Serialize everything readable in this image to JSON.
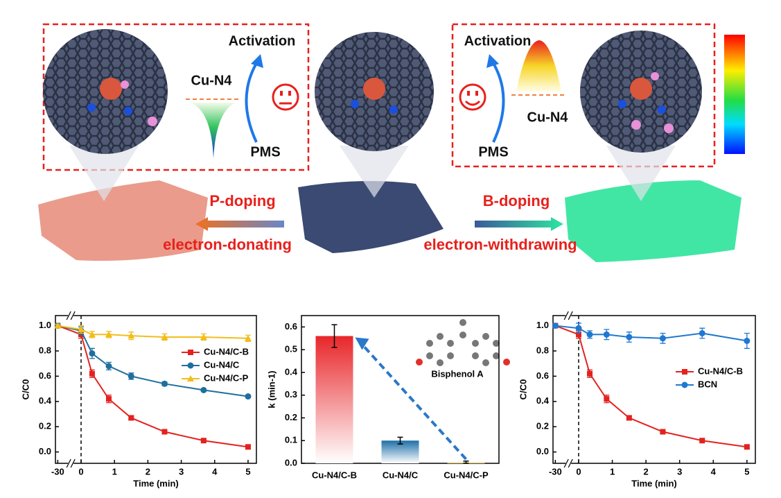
{
  "schematic": {
    "left": {
      "activation": "Activation",
      "site": "Cu-N4",
      "oxidant": "PMS",
      "doping": "P-doping",
      "effect": "electron-donating"
    },
    "right": {
      "activation": "Activation",
      "site": "Cu-N4",
      "oxidant": "PMS",
      "doping": "B-doping",
      "effect": "electron-withdrawing"
    }
  },
  "chart_data": [
    {
      "type": "line",
      "x": [
        -30,
        0,
        0.33,
        0.83,
        1.5,
        2.5,
        3.67,
        5
      ],
      "xlim": [
        -33,
        5.25
      ],
      "xticks": [
        -30,
        0,
        1,
        2,
        3,
        4,
        5
      ],
      "ylim": [
        -0.09,
        1.08
      ],
      "yticks": [
        {
          "value": 0,
          "label": "0.0"
        },
        0.2,
        0.4,
        0.6,
        0.8,
        {
          "value": 1,
          "label": "1.0"
        }
      ],
      "xlabel": "Time (min)",
      "ylabel": "C/C0",
      "series": [
        {
          "name": "Cu-N4/C-B",
          "color": "#e3221f",
          "marker": "square",
          "values": [
            1.0,
            0.93,
            0.62,
            0.42,
            0.27,
            0.16,
            0.09,
            0.04
          ],
          "errors": [
            0.01,
            0.03,
            0.03,
            0.03,
            0.015,
            0.01,
            0.01,
            0.01
          ]
        },
        {
          "name": "Cu-N4/C",
          "color": "#1f6f9e",
          "marker": "circle",
          "values": [
            1.0,
            0.96,
            0.78,
            0.68,
            0.6,
            0.54,
            0.49,
            0.44
          ],
          "errors": [
            0.01,
            0.03,
            0.04,
            0.03,
            0.025,
            0.015,
            0.01,
            0.01
          ]
        },
        {
          "name": "Cu-N4/C-P",
          "color": "#f2bd1d",
          "marker": "triangle",
          "values": [
            1.0,
            0.97,
            0.93,
            0.93,
            0.92,
            0.91,
            0.91,
            0.9
          ],
          "errors": [
            0.01,
            0.03,
            0.025,
            0.025,
            0.03,
            0.025,
            0.025,
            0.025
          ]
        }
      ]
    },
    {
      "type": "bar",
      "categories": [
        "Cu-N4/C-B",
        "Cu-N4/C",
        "Cu-N4/C-P"
      ],
      "values": [
        0.56,
        0.1,
        0.005
      ],
      "errors": [
        0.05,
        0.015,
        0.005
      ],
      "colors": [
        "#e8262a",
        "#1e6fa8",
        "#f2c12e"
      ],
      "ylim": [
        0,
        0.65
      ],
      "yticks": [
        {
          "value": 0,
          "label": "0.0"
        },
        0.1,
        0.2,
        0.3,
        0.4,
        0.5,
        0.6
      ],
      "ylabel": "k (min-1)",
      "annotation": "Bisphenol A"
    },
    {
      "type": "line",
      "x": [
        -30,
        0,
        0.33,
        0.83,
        1.5,
        2.5,
        3.67,
        5
      ],
      "xlim": [
        -33,
        5.25
      ],
      "xticks": [
        -30,
        0,
        1,
        2,
        3,
        4,
        5
      ],
      "ylim": [
        -0.09,
        1.08
      ],
      "yticks": [
        {
          "value": 0,
          "label": "0.0"
        },
        0.2,
        0.4,
        0.6,
        0.8,
        {
          "value": 1,
          "label": "1.0"
        }
      ],
      "xlabel": "Time (min)",
      "ylabel": "C/C0",
      "series": [
        {
          "name": "Cu-N4/C-B",
          "color": "#e3221f",
          "marker": "square",
          "values": [
            1.0,
            0.93,
            0.62,
            0.42,
            0.27,
            0.16,
            0.09,
            0.04
          ],
          "errors": [
            0.01,
            0.03,
            0.03,
            0.03,
            0.015,
            0.01,
            0.01,
            0.01
          ]
        },
        {
          "name": "BCN",
          "color": "#1f78d1",
          "marker": "circle",
          "values": [
            1.0,
            0.98,
            0.93,
            0.93,
            0.91,
            0.9,
            0.94,
            0.88
          ],
          "errors": [
            0.01,
            0.04,
            0.03,
            0.04,
            0.04,
            0.04,
            0.04,
            0.06
          ]
        }
      ]
    }
  ]
}
